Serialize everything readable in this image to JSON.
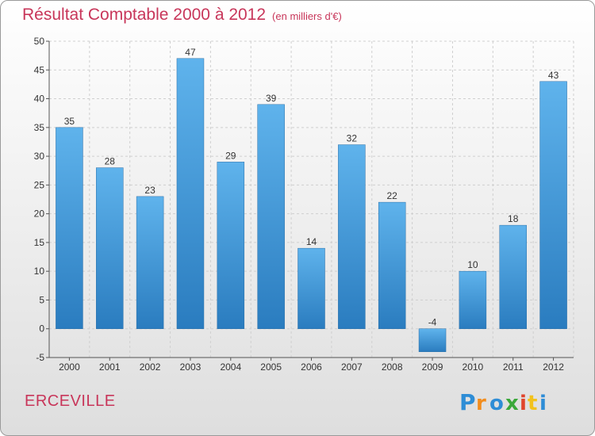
{
  "header": {
    "title": "Résultat Comptable 2000 à 2012",
    "subtitle": "(en milliers d'€)"
  },
  "footer": {
    "town": "ERCEVILLE",
    "brand": "Proxiti"
  },
  "colors": {
    "bar_top": "#5fb3ec",
    "bar_bottom": "#2a7cbf",
    "title": "#c8365a",
    "text": "#333333",
    "grid": "#cfcfcf"
  },
  "chart_data": {
    "type": "bar",
    "title": "Résultat Comptable 2000 à 2012",
    "xlabel": "",
    "ylabel": "",
    "ylim": [
      -5,
      50
    ],
    "yticks": [
      -5,
      0,
      5,
      10,
      15,
      20,
      25,
      30,
      35,
      40,
      45,
      50
    ],
    "grid": "y-dashed",
    "categories": [
      "2000",
      "2001",
      "2002",
      "2003",
      "2004",
      "2005",
      "2006",
      "2007",
      "2008",
      "2009",
      "2010",
      "2011",
      "2012"
    ],
    "values": [
      35,
      28,
      23,
      47,
      29,
      39,
      14,
      32,
      22,
      -4,
      10,
      18,
      43
    ],
    "labels": [
      "35",
      "28",
      "23",
      "47",
      "29",
      "39",
      "14",
      "32",
      "22",
      "-4",
      "10",
      "18",
      "43"
    ]
  }
}
